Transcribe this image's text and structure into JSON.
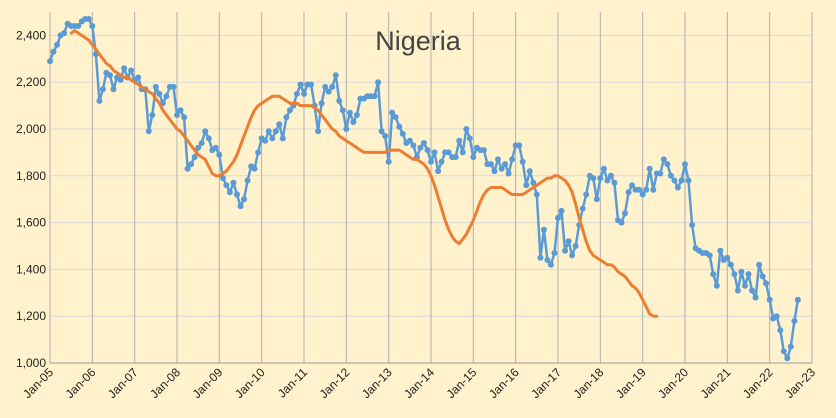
{
  "chart_data": {
    "type": "line",
    "title": "Nigeria",
    "xlabel": "",
    "ylabel": "",
    "ylim": [
      1000,
      2500
    ],
    "y_ticks": [
      1000,
      1200,
      1400,
      1600,
      1800,
      2000,
      2200,
      2400
    ],
    "y_tick_labels": [
      "1,000",
      "1,200",
      "1,400",
      "1,600",
      "1,800",
      "2,000",
      "2,200",
      "2,400"
    ],
    "x_tick_labels": [
      "Jan-05",
      "Jan-06",
      "Jan-07",
      "Jan-08",
      "Jan-09",
      "Jan-10",
      "Jan-11",
      "Jan-12",
      "Jan-13",
      "Jan-14",
      "Jan-15",
      "Jan-16",
      "Jan-17",
      "Jan-18",
      "Jan-19",
      "Jan-20",
      "Jan-21",
      "Jan-22",
      "Jan-23"
    ],
    "grid": "horizontal and vertical",
    "legend": "none",
    "series": [
      {
        "color": "#5b9bd5",
        "marker": "circle",
        "monthly_start": "Jan-05",
        "values": [
          2290,
          2330,
          2360,
          2400,
          2410,
          2450,
          2440,
          2440,
          2440,
          2460,
          2470,
          2470,
          2440,
          2320,
          2120,
          2170,
          2240,
          2230,
          2170,
          2220,
          2210,
          2260,
          2220,
          2250,
          2210,
          2220,
          2170,
          2170,
          1990,
          2060,
          2180,
          2150,
          2110,
          2140,
          2180,
          2180,
          2060,
          2080,
          2050,
          1830,
          1850,
          1880,
          1920,
          1940,
          1990,
          1960,
          1910,
          1920,
          1890,
          1790,
          1760,
          1730,
          1770,
          1720,
          1670,
          1700,
          1780,
          1840,
          1830,
          1900,
          1960,
          1950,
          1990,
          1960,
          1990,
          2020,
          1960,
          2050,
          2080,
          2100,
          2150,
          2190,
          2150,
          2190,
          2190,
          2100,
          1990,
          2110,
          2180,
          2160,
          2180,
          2230,
          2120,
          2080,
          2000,
          2070,
          2030,
          2060,
          2130,
          2130,
          2140,
          2140,
          2140,
          2200,
          1990,
          1970,
          1860,
          2070,
          2050,
          2010,
          1980,
          1940,
          1950,
          1930,
          1880,
          1920,
          1940,
          1910,
          1860,
          1900,
          1820,
          1860,
          1900,
          1900,
          1880,
          1880,
          1950,
          1900,
          2000,
          1960,
          1880,
          1920,
          1910,
          1910,
          1850,
          1850,
          1820,
          1870,
          1830,
          1850,
          1810,
          1870,
          1930,
          1930,
          1860,
          1760,
          1820,
          1770,
          1720,
          1450,
          1570,
          1440,
          1420,
          1470,
          1620,
          1650,
          1480,
          1520,
          1460,
          1500,
          1590,
          1660,
          1720,
          1800,
          1790,
          1700,
          1790,
          1830,
          1780,
          1800,
          1770,
          1610,
          1600,
          1640,
          1730,
          1760,
          1740,
          1740,
          1720,
          1740,
          1830,
          1740,
          1810,
          1810,
          1870,
          1850,
          1800,
          1780,
          1750,
          1780,
          1850,
          1780,
          1590,
          1490,
          1480,
          1470,
          1470,
          1460,
          1380,
          1330,
          1480,
          1440,
          1450,
          1420,
          1380,
          1310,
          1390,
          1330,
          1380,
          1310,
          1280,
          1420,
          1370,
          1340,
          1270,
          1190,
          1200,
          1140,
          1050,
          1020,
          1070,
          1180,
          1270
        ]
      },
      {
        "color": "#ed7d31",
        "marker": "none",
        "monthly_start": "Jul-05",
        "values": [
          2410,
          2420,
          2410,
          2400,
          2390,
          2380,
          2360,
          2340,
          2320,
          2300,
          2280,
          2270,
          2250,
          2240,
          2230,
          2220,
          2220,
          2210,
          2200,
          2190,
          2180,
          2170,
          2160,
          2150,
          2130,
          2110,
          2080,
          2060,
          2040,
          2020,
          2000,
          1990,
          1970,
          1950,
          1930,
          1910,
          1890,
          1880,
          1870,
          1840,
          1810,
          1800,
          1800,
          1810,
          1820,
          1840,
          1860,
          1890,
          1930,
          1970,
          2010,
          2050,
          2080,
          2100,
          2110,
          2120,
          2130,
          2140,
          2140,
          2140,
          2130,
          2120,
          2110,
          2110,
          2110,
          2100,
          2100,
          2100,
          2100,
          2090,
          2080,
          2060,
          2040,
          2020,
          2000,
          1990,
          1970,
          1960,
          1950,
          1940,
          1930,
          1920,
          1910,
          1900,
          1900,
          1900,
          1900,
          1900,
          1900,
          1900,
          1910,
          1910,
          1910,
          1910,
          1900,
          1890,
          1880,
          1870,
          1870,
          1860,
          1850,
          1830,
          1800,
          1760,
          1710,
          1660,
          1610,
          1570,
          1540,
          1520,
          1510,
          1530,
          1550,
          1580,
          1610,
          1650,
          1690,
          1720,
          1740,
          1750,
          1750,
          1750,
          1750,
          1740,
          1730,
          1720,
          1720,
          1720,
          1720,
          1730,
          1740,
          1750,
          1760,
          1770,
          1780,
          1790,
          1790,
          1800,
          1800,
          1790,
          1780,
          1760,
          1730,
          1680,
          1620,
          1570,
          1520,
          1480,
          1460,
          1450,
          1440,
          1430,
          1420,
          1420,
          1410,
          1390,
          1380,
          1370,
          1350,
          1330,
          1320,
          1300,
          1270,
          1240,
          1210,
          1200,
          1200
        ]
      }
    ]
  }
}
